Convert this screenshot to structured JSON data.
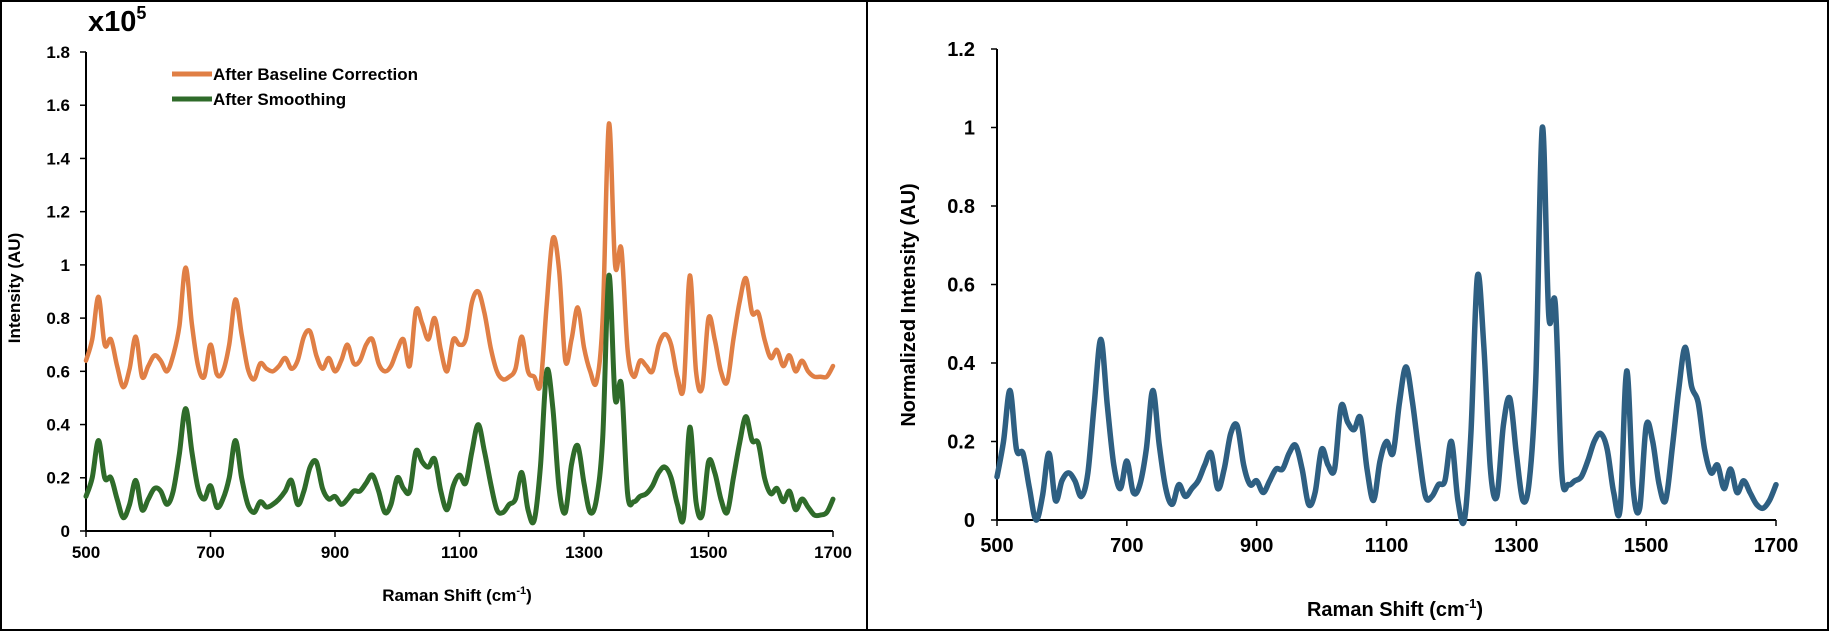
{
  "chart_data": [
    {
      "type": "line",
      "title": "",
      "scale_note": "x10",
      "scale_exp": "5",
      "xlabel": "Raman Shift (cm",
      "xlabel_sup": "-1",
      "xlabel_end": ")",
      "ylabel": "Intensity (AU)",
      "xlim": [
        500,
        1700
      ],
      "ylim": [
        0,
        1.8
      ],
      "xticks": [
        "500",
        "700",
        "900",
        "1100",
        "1300",
        "1500",
        "1700"
      ],
      "yticks": [
        "0",
        "0.2",
        "0.4",
        "0.6",
        "0.8",
        "1",
        "1.2",
        "1.4",
        "1.6",
        "1.8"
      ],
      "legend_position": "top-left",
      "x": [
        500,
        510,
        520,
        530,
        540,
        550,
        560,
        570,
        580,
        590,
        600,
        610,
        620,
        630,
        640,
        650,
        660,
        670,
        680,
        690,
        700,
        710,
        720,
        730,
        740,
        750,
        760,
        770,
        780,
        790,
        800,
        810,
        820,
        830,
        840,
        850,
        860,
        870,
        880,
        890,
        900,
        910,
        920,
        930,
        940,
        950,
        960,
        970,
        980,
        990,
        1000,
        1010,
        1020,
        1030,
        1040,
        1050,
        1060,
        1070,
        1080,
        1090,
        1100,
        1110,
        1120,
        1130,
        1140,
        1150,
        1160,
        1170,
        1180,
        1190,
        1200,
        1210,
        1220,
        1230,
        1240,
        1250,
        1260,
        1270,
        1280,
        1290,
        1300,
        1310,
        1320,
        1330,
        1340,
        1350,
        1360,
        1370,
        1380,
        1390,
        1400,
        1410,
        1420,
        1430,
        1440,
        1450,
        1460,
        1470,
        1480,
        1490,
        1500,
        1510,
        1520,
        1530,
        1540,
        1550,
        1560,
        1570,
        1580,
        1590,
        1600,
        1610,
        1620,
        1630,
        1640,
        1650,
        1660,
        1670,
        1680,
        1690,
        1700
      ],
      "series": [
        {
          "name": "After Baseline Correction",
          "color": "#E07F45",
          "values": [
            0.64,
            0.72,
            0.88,
            0.7,
            0.72,
            0.62,
            0.54,
            0.61,
            0.73,
            0.58,
            0.62,
            0.66,
            0.64,
            0.6,
            0.66,
            0.77,
            0.99,
            0.78,
            0.62,
            0.58,
            0.7,
            0.59,
            0.6,
            0.7,
            0.87,
            0.74,
            0.61,
            0.57,
            0.63,
            0.61,
            0.6,
            0.62,
            0.65,
            0.61,
            0.64,
            0.73,
            0.75,
            0.66,
            0.61,
            0.65,
            0.6,
            0.64,
            0.7,
            0.63,
            0.64,
            0.7,
            0.72,
            0.63,
            0.6,
            0.62,
            0.68,
            0.72,
            0.62,
            0.83,
            0.78,
            0.72,
            0.8,
            0.68,
            0.6,
            0.72,
            0.7,
            0.72,
            0.86,
            0.9,
            0.82,
            0.69,
            0.6,
            0.57,
            0.58,
            0.61,
            0.73,
            0.6,
            0.58,
            0.55,
            0.85,
            1.1,
            0.98,
            0.64,
            0.72,
            0.84,
            0.69,
            0.6,
            0.56,
            0.8,
            1.53,
            1.0,
            1.06,
            0.68,
            0.58,
            0.64,
            0.62,
            0.6,
            0.7,
            0.74,
            0.7,
            0.58,
            0.54,
            0.96,
            0.6,
            0.54,
            0.8,
            0.72,
            0.6,
            0.56,
            0.72,
            0.86,
            0.95,
            0.82,
            0.82,
            0.72,
            0.65,
            0.68,
            0.62,
            0.66,
            0.6,
            0.64,
            0.6,
            0.58,
            0.58,
            0.58,
            0.62
          ]
        },
        {
          "name": "After Smoothing",
          "color": "#2F6B2A",
          "values": [
            0.13,
            0.2,
            0.34,
            0.2,
            0.2,
            0.12,
            0.05,
            0.1,
            0.19,
            0.08,
            0.12,
            0.16,
            0.15,
            0.1,
            0.15,
            0.29,
            0.46,
            0.3,
            0.16,
            0.12,
            0.17,
            0.09,
            0.12,
            0.2,
            0.34,
            0.2,
            0.1,
            0.07,
            0.11,
            0.09,
            0.1,
            0.12,
            0.15,
            0.19,
            0.1,
            0.15,
            0.24,
            0.26,
            0.16,
            0.12,
            0.13,
            0.1,
            0.12,
            0.15,
            0.15,
            0.18,
            0.21,
            0.15,
            0.07,
            0.1,
            0.2,
            0.16,
            0.15,
            0.3,
            0.26,
            0.24,
            0.27,
            0.15,
            0.08,
            0.17,
            0.21,
            0.18,
            0.3,
            0.4,
            0.3,
            0.18,
            0.08,
            0.07,
            0.1,
            0.12,
            0.22,
            0.08,
            0.04,
            0.24,
            0.6,
            0.46,
            0.16,
            0.07,
            0.25,
            0.32,
            0.18,
            0.07,
            0.12,
            0.35,
            0.96,
            0.5,
            0.55,
            0.14,
            0.11,
            0.13,
            0.14,
            0.17,
            0.22,
            0.24,
            0.2,
            0.1,
            0.05,
            0.39,
            0.11,
            0.06,
            0.26,
            0.22,
            0.12,
            0.07,
            0.2,
            0.33,
            0.43,
            0.34,
            0.33,
            0.2,
            0.14,
            0.16,
            0.11,
            0.15,
            0.08,
            0.12,
            0.09,
            0.06,
            0.06,
            0.07,
            0.12
          ]
        }
      ]
    },
    {
      "type": "line",
      "title": "",
      "xlabel": "Raman Shift (cm",
      "xlabel_sup": "-1",
      "xlabel_end": ")",
      "ylabel": "Normalized Intensity (AU)",
      "xlim": [
        500,
        1700
      ],
      "ylim": [
        0,
        1.2
      ],
      "xticks": [
        "500",
        "700",
        "900",
        "1100",
        "1300",
        "1500",
        "1700"
      ],
      "yticks": [
        "0",
        "0.2",
        "0.4",
        "0.6",
        "0.8",
        "1",
        "1.2"
      ],
      "x": [
        500,
        510,
        520,
        530,
        540,
        550,
        560,
        570,
        580,
        590,
        600,
        610,
        620,
        630,
        640,
        650,
        660,
        670,
        680,
        690,
        700,
        710,
        720,
        730,
        740,
        750,
        760,
        770,
        780,
        790,
        800,
        810,
        820,
        830,
        840,
        850,
        860,
        870,
        880,
        890,
        900,
        910,
        920,
        930,
        940,
        950,
        960,
        970,
        980,
        990,
        1000,
        1010,
        1020,
        1030,
        1040,
        1050,
        1060,
        1070,
        1080,
        1090,
        1100,
        1110,
        1120,
        1130,
        1140,
        1150,
        1160,
        1170,
        1180,
        1190,
        1200,
        1210,
        1220,
        1230,
        1240,
        1250,
        1260,
        1270,
        1280,
        1290,
        1300,
        1310,
        1320,
        1330,
        1340,
        1350,
        1360,
        1370,
        1380,
        1390,
        1400,
        1410,
        1420,
        1430,
        1440,
        1450,
        1460,
        1470,
        1480,
        1490,
        1500,
        1510,
        1520,
        1530,
        1540,
        1550,
        1560,
        1570,
        1580,
        1590,
        1600,
        1610,
        1620,
        1630,
        1640,
        1650,
        1660,
        1670,
        1680,
        1690,
        1700
      ],
      "series": [
        {
          "color": "#2E5F82",
          "values": [
            0.11,
            0.2,
            0.33,
            0.18,
            0.17,
            0.08,
            0.0,
            0.06,
            0.17,
            0.05,
            0.1,
            0.12,
            0.1,
            0.06,
            0.12,
            0.3,
            0.46,
            0.29,
            0.14,
            0.08,
            0.15,
            0.07,
            0.09,
            0.18,
            0.33,
            0.19,
            0.08,
            0.04,
            0.09,
            0.06,
            0.08,
            0.1,
            0.14,
            0.17,
            0.08,
            0.13,
            0.22,
            0.24,
            0.14,
            0.09,
            0.1,
            0.07,
            0.1,
            0.13,
            0.13,
            0.17,
            0.19,
            0.13,
            0.04,
            0.07,
            0.18,
            0.14,
            0.13,
            0.29,
            0.25,
            0.23,
            0.26,
            0.13,
            0.05,
            0.15,
            0.2,
            0.17,
            0.3,
            0.39,
            0.3,
            0.17,
            0.06,
            0.06,
            0.09,
            0.1,
            0.2,
            0.05,
            0.0,
            0.22,
            0.62,
            0.44,
            0.13,
            0.06,
            0.24,
            0.31,
            0.17,
            0.05,
            0.1,
            0.36,
            1.0,
            0.52,
            0.55,
            0.12,
            0.09,
            0.1,
            0.11,
            0.15,
            0.2,
            0.22,
            0.18,
            0.07,
            0.03,
            0.38,
            0.08,
            0.03,
            0.24,
            0.2,
            0.09,
            0.05,
            0.18,
            0.33,
            0.44,
            0.34,
            0.3,
            0.18,
            0.12,
            0.14,
            0.08,
            0.13,
            0.07,
            0.1,
            0.07,
            0.04,
            0.03,
            0.05,
            0.09
          ]
        }
      ]
    }
  ]
}
